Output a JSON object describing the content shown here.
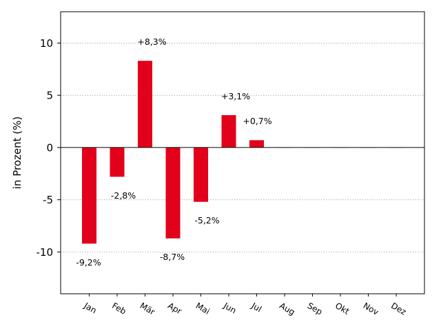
{
  "chart_data": {
    "type": "bar",
    "categories": [
      "Jan",
      "Feb",
      "Mär",
      "Apr",
      "Mai",
      "Jun",
      "Jul",
      "Aug",
      "Sep",
      "Okt",
      "Nov",
      "Dez"
    ],
    "values": [
      -9.2,
      -2.8,
      8.3,
      -8.7,
      -5.2,
      3.1,
      0.7,
      0,
      0,
      0,
      0,
      0
    ],
    "data_labels": [
      "-9,2%",
      "-2,8%",
      "+8,3%",
      "-8,7%",
      "-5,2%",
      "+3,1%",
      "+0,7%",
      "",
      "",
      "",
      "",
      ""
    ],
    "ylabel": "in Prozent (%)",
    "ylim": [
      -14,
      13
    ],
    "yticks": [
      -10,
      -5,
      0,
      5,
      10
    ],
    "ytick_labels": [
      "-10",
      "-5",
      "0",
      "5",
      "10"
    ],
    "grid": "horizontal dotted",
    "bar_color": "#e2001a"
  }
}
